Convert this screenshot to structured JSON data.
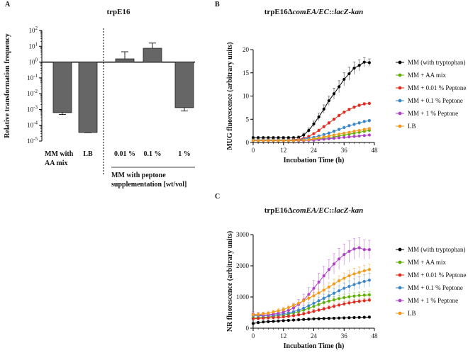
{
  "chart_data": [
    {
      "panel": "A",
      "type": "bar",
      "title": "trpE16",
      "ylabel": "Relative transformation frequency",
      "yscale": "log",
      "ylim_exp": [
        -5,
        2
      ],
      "yticks": [
        "10^-5",
        "10^-4",
        "10^-3",
        "10^-2",
        "10^-1",
        "10^0",
        "10^1",
        "10^2"
      ],
      "bar_color": "#666666",
      "categories": [
        "MM with AA mix",
        "LB",
        "0.01 %",
        "0.1 %",
        "1 %"
      ],
      "category_lines": [
        [
          "MM with",
          "AA mix"
        ],
        [
          "LB"
        ],
        [
          "0.01 %"
        ],
        [
          "0.1 %"
        ],
        [
          "1 %"
        ]
      ],
      "values": [
        0.00063,
        3.5e-05,
        1.6,
        7.5,
        0.0013
      ],
      "err_upper": [
        0.00085,
        3.7e-05,
        4.5,
        16,
        0.0013
      ],
      "err_lower": [
        0.00048,
        3.4e-05,
        1.0,
        4.5,
        0.0008
      ],
      "group_label": [
        "MM with peptone",
        "supplementation [wt/vol]"
      ]
    },
    {
      "panel": "B",
      "type": "line",
      "title_parts": [
        "trpE16",
        "Δ",
        "comEA/EC",
        "::",
        "lacZ-kan"
      ],
      "xlabel": "Incubation Time (h)",
      "ylabel": "MUG fluorescence (arbitrary units)",
      "xlim": [
        0,
        48
      ],
      "xticks": [
        0,
        12,
        24,
        36,
        48
      ],
      "ylim": [
        0,
        20
      ],
      "yticks": [
        0,
        5,
        10,
        15,
        20
      ],
      "x": [
        0,
        2,
        4,
        6,
        8,
        10,
        12,
        14,
        16,
        18,
        20,
        22,
        24,
        26,
        28,
        30,
        32,
        34,
        36,
        38,
        40,
        42,
        44,
        46
      ],
      "series": [
        {
          "name": "MM (with tryptophan)",
          "color": "#000000",
          "values": [
            1.0,
            1.0,
            1.0,
            1.0,
            1.0,
            1.0,
            1.0,
            1.0,
            1.0,
            1.1,
            1.6,
            2.6,
            4.0,
            5.5,
            7.2,
            9.0,
            10.5,
            12.0,
            13.6,
            14.8,
            16.0,
            16.6,
            17.3,
            17.2
          ],
          "errors": [
            0.3,
            0.3,
            0.3,
            0.3,
            0.3,
            0.3,
            0.3,
            0.3,
            0.3,
            0.3,
            0.4,
            0.5,
            0.6,
            0.8,
            0.9,
            1.0,
            1.2,
            1.3,
            1.4,
            1.4,
            1.3,
            1.2,
            1.0,
            0.8
          ]
        },
        {
          "name": "MM + AA mix",
          "color": "#5fb000",
          "values": [
            0.5,
            0.5,
            0.5,
            0.5,
            0.5,
            0.5,
            0.5,
            0.5,
            0.5,
            0.5,
            0.5,
            0.6,
            0.7,
            0.8,
            0.9,
            1.0,
            1.2,
            1.4,
            1.6,
            1.8,
            2.0,
            2.2,
            2.4,
            2.6
          ],
          "errors": [
            0.1,
            0.1,
            0.1,
            0.1,
            0.1,
            0.1,
            0.1,
            0.1,
            0.1,
            0.1,
            0.1,
            0.1,
            0.1,
            0.1,
            0.1,
            0.1,
            0.15,
            0.15,
            0.2,
            0.2,
            0.2,
            0.2,
            0.2,
            0.2
          ]
        },
        {
          "name": "MM + 0.01 % Peptone",
          "color": "#e02a1e",
          "values": [
            0.5,
            0.5,
            0.5,
            0.5,
            0.5,
            0.5,
            0.5,
            0.5,
            0.6,
            0.7,
            0.9,
            1.3,
            1.9,
            2.6,
            3.4,
            4.2,
            5.0,
            5.8,
            6.5,
            7.1,
            7.6,
            8.0,
            8.3,
            8.4
          ],
          "errors": [
            0.1,
            0.1,
            0.1,
            0.1,
            0.1,
            0.1,
            0.1,
            0.1,
            0.1,
            0.1,
            0.1,
            0.2,
            0.2,
            0.3,
            0.3,
            0.3,
            0.3,
            0.3,
            0.3,
            0.3,
            0.3,
            0.3,
            0.3,
            0.3
          ]
        },
        {
          "name": "MM + 0.1 % Peptone",
          "color": "#3a86c8",
          "values": [
            0.5,
            0.5,
            0.5,
            0.5,
            0.5,
            0.5,
            0.5,
            0.5,
            0.5,
            0.6,
            0.7,
            0.9,
            1.1,
            1.4,
            1.7,
            2.0,
            2.4,
            2.8,
            3.2,
            3.6,
            3.9,
            4.2,
            4.5,
            4.7
          ],
          "errors": [
            0.1,
            0.1,
            0.1,
            0.1,
            0.1,
            0.1,
            0.1,
            0.1,
            0.1,
            0.1,
            0.1,
            0.1,
            0.2,
            0.2,
            0.2,
            0.3,
            0.3,
            0.3,
            0.3,
            0.3,
            0.3,
            0.3,
            0.3,
            0.3
          ]
        },
        {
          "name": "MM + 1 % Peptone",
          "color": "#b040c8",
          "values": [
            0.4,
            0.4,
            0.4,
            0.4,
            0.4,
            0.4,
            0.4,
            0.4,
            0.4,
            0.4,
            0.4,
            0.5,
            0.5,
            0.6,
            0.7,
            0.8,
            0.9,
            1.0,
            1.1,
            1.2,
            1.3,
            1.4,
            1.5,
            1.6
          ],
          "errors": [
            0.1,
            0.1,
            0.1,
            0.1,
            0.1,
            0.1,
            0.1,
            0.1,
            0.1,
            0.1,
            0.1,
            0.1,
            0.1,
            0.1,
            0.1,
            0.1,
            0.1,
            0.1,
            0.1,
            0.1,
            0.1,
            0.1,
            0.1,
            0.1
          ]
        },
        {
          "name": "LB",
          "color": "#f39a18",
          "values": [
            0.4,
            0.4,
            0.4,
            0.4,
            0.4,
            0.4,
            0.4,
            0.4,
            0.4,
            0.5,
            0.5,
            0.6,
            0.8,
            1.0,
            1.2,
            1.4,
            1.6,
            1.8,
            2.0,
            2.2,
            2.4,
            2.6,
            2.8,
            3.0
          ],
          "errors": [
            0.1,
            0.1,
            0.1,
            0.1,
            0.1,
            0.1,
            0.1,
            0.1,
            0.1,
            0.1,
            0.1,
            0.1,
            0.1,
            0.1,
            0.1,
            0.15,
            0.15,
            0.2,
            0.2,
            0.2,
            0.2,
            0.2,
            0.2,
            0.2
          ]
        }
      ]
    },
    {
      "panel": "C",
      "type": "line",
      "title_parts": [
        "trpE16",
        "Δ",
        "comEA/EC",
        "::",
        "lacZ-kan"
      ],
      "xlabel": "Incubation Time (h)",
      "ylabel": "NR fluorescence (arbitrary units)",
      "xlim": [
        0,
        48
      ],
      "xticks": [
        0,
        12,
        24,
        36,
        48
      ],
      "ylim": [
        0,
        3000
      ],
      "yticks": [
        0,
        1000,
        2000,
        3000
      ],
      "x": [
        0,
        2,
        4,
        6,
        8,
        10,
        12,
        14,
        16,
        18,
        20,
        22,
        24,
        26,
        28,
        30,
        32,
        34,
        36,
        38,
        40,
        42,
        44,
        46
      ],
      "series": [
        {
          "name": "MM (with tryptophan)",
          "color": "#000000",
          "values": [
            150,
            180,
            200,
            210,
            220,
            230,
            240,
            250,
            260,
            270,
            280,
            290,
            300,
            305,
            310,
            315,
            320,
            325,
            330,
            335,
            340,
            345,
            350,
            355
          ],
          "errors": [
            30,
            30,
            30,
            30,
            30,
            30,
            30,
            30,
            30,
            30,
            30,
            30,
            30,
            30,
            30,
            30,
            30,
            30,
            30,
            30,
            30,
            30,
            30,
            30
          ]
        },
        {
          "name": "MM + AA mix",
          "color": "#5fb000",
          "values": [
            330,
            340,
            350,
            360,
            380,
            400,
            420,
            450,
            490,
            530,
            580,
            640,
            700,
            760,
            820,
            870,
            910,
            950,
            980,
            1010,
            1030,
            1050,
            1060,
            1070
          ],
          "errors": [
            50,
            50,
            50,
            50,
            50,
            50,
            50,
            60,
            60,
            70,
            70,
            80,
            80,
            90,
            90,
            100,
            100,
            100,
            110,
            110,
            110,
            110,
            110,
            110
          ]
        },
        {
          "name": "MM + 0.01 % Peptone",
          "color": "#e02a1e",
          "values": [
            300,
            310,
            320,
            330,
            340,
            350,
            360,
            380,
            400,
            430,
            460,
            500,
            540,
            580,
            620,
            660,
            700,
            740,
            780,
            810,
            840,
            860,
            880,
            900
          ],
          "errors": [
            40,
            40,
            40,
            40,
            40,
            40,
            40,
            40,
            40,
            50,
            50,
            50,
            60,
            60,
            60,
            70,
            70,
            70,
            70,
            70,
            70,
            70,
            70,
            70
          ]
        },
        {
          "name": "MM + 0.1 % Peptone",
          "color": "#3a86c8",
          "values": [
            400,
            400,
            400,
            410,
            420,
            440,
            460,
            490,
            530,
            580,
            640,
            720,
            800,
            880,
            960,
            1040,
            1120,
            1200,
            1280,
            1340,
            1400,
            1450,
            1500,
            1540
          ],
          "errors": [
            60,
            60,
            60,
            60,
            60,
            60,
            70,
            70,
            80,
            80,
            90,
            100,
            110,
            120,
            130,
            140,
            150,
            160,
            170,
            180,
            190,
            200,
            210,
            220
          ]
        },
        {
          "name": "MM + 1 % Peptone",
          "color": "#b040c8",
          "values": [
            450,
            430,
            420,
            430,
            450,
            480,
            520,
            570,
            650,
            760,
            900,
            1080,
            1280,
            1480,
            1680,
            1880,
            2060,
            2220,
            2360,
            2460,
            2540,
            2580,
            2520,
            2520
          ],
          "errors": [
            80,
            80,
            80,
            80,
            80,
            90,
            100,
            110,
            130,
            160,
            190,
            220,
            250,
            280,
            300,
            320,
            330,
            340,
            340,
            340,
            330,
            320,
            310,
            300
          ]
        },
        {
          "name": "LB",
          "color": "#f39a18",
          "values": [
            430,
            440,
            460,
            480,
            520,
            560,
            600,
            660,
            730,
            800,
            880,
            960,
            1040,
            1130,
            1220,
            1320,
            1420,
            1520,
            1600,
            1680,
            1740,
            1790,
            1840,
            1880
          ],
          "errors": [
            60,
            60,
            60,
            60,
            60,
            60,
            70,
            70,
            80,
            80,
            90,
            100,
            110,
            120,
            130,
            140,
            150,
            160,
            170,
            180,
            180,
            180,
            180,
            180
          ]
        }
      ]
    }
  ]
}
